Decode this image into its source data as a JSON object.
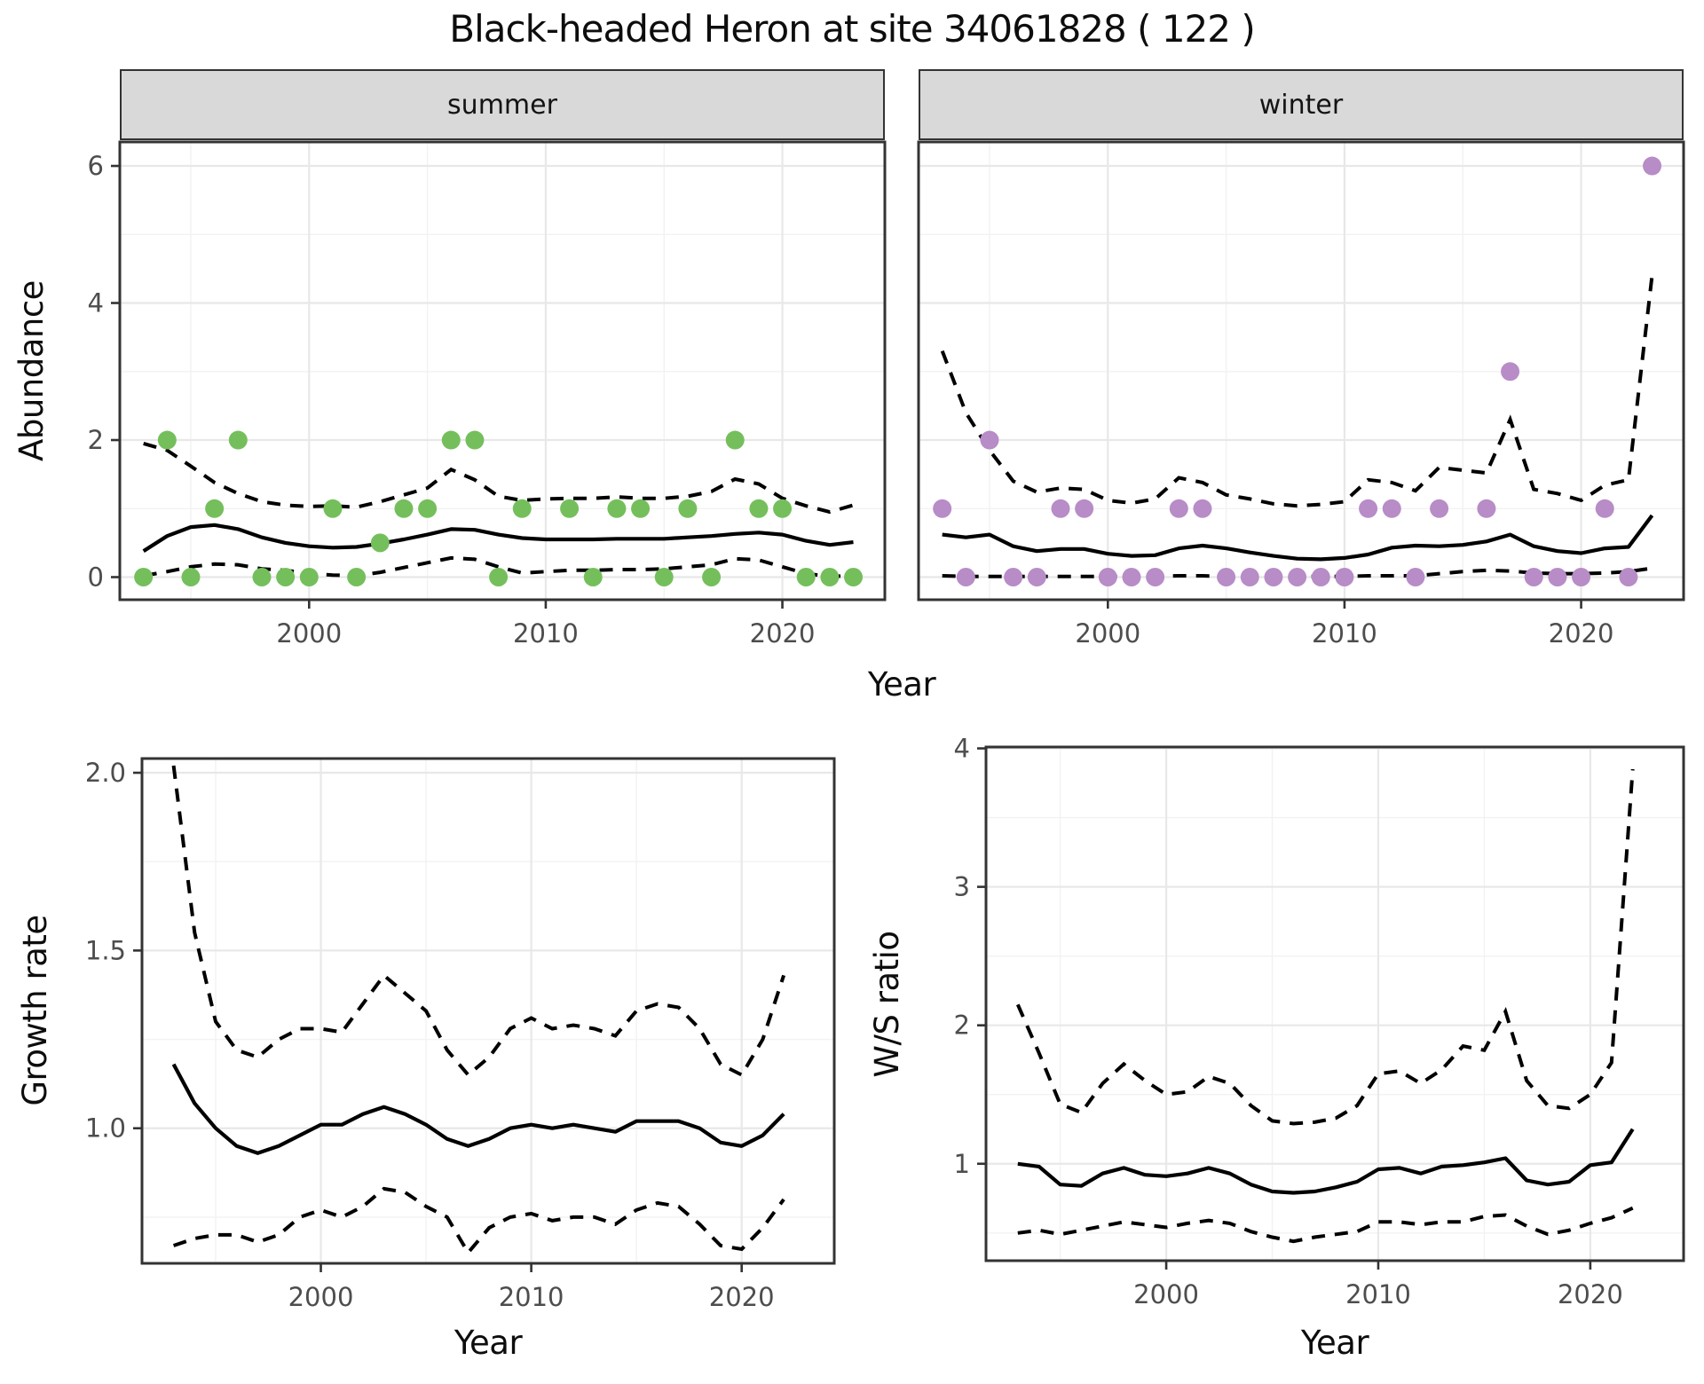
{
  "title": "Black-headed Heron at site 34061828 ( 122 )",
  "labels": {
    "year": "Year",
    "abundance": "Abundance",
    "growth_rate": "Growth rate",
    "ws_ratio": "W/S ratio"
  },
  "facets": [
    {
      "label": "summer"
    },
    {
      "label": "winter"
    }
  ],
  "colors": {
    "summer_point": "#74bf5c",
    "winter_point": "#b78cc7",
    "strip_bg": "#d9d9d9",
    "grid_major": "#e8e8e8",
    "grid_minor": "#f2f2f2",
    "panel_border": "#333333",
    "tick_text": "#4d4d4d",
    "line": "#000000"
  },
  "chart_data": [
    {
      "name": "abundance-summer",
      "type": "scatter",
      "facet": "summer",
      "xlabel": "Year",
      "ylabel": "Abundance",
      "xlim": [
        1992.0,
        2024.33
      ],
      "ylim": [
        -0.33,
        6.35
      ],
      "xticks": [
        2000,
        2010,
        2020
      ],
      "xtick_labels": [
        "2000",
        "2010",
        "2020"
      ],
      "yticks": [
        0,
        2,
        4,
        6
      ],
      "ytick_labels": [
        "0",
        "2",
        "4",
        "6"
      ],
      "x_minor": [
        1995,
        2005,
        2015
      ],
      "y_minor": [
        1,
        3,
        5
      ],
      "show_y_labels": true,
      "point_color": "#74bf5c",
      "years": [
        1993,
        1994,
        1995,
        1996,
        1997,
        1998,
        1999,
        2000,
        2001,
        2002,
        2003,
        2004,
        2005,
        2006,
        2007,
        2008,
        2009,
        2010,
        2011,
        2012,
        2013,
        2014,
        2015,
        2016,
        2017,
        2018,
        2019,
        2020,
        2021,
        2022,
        2023
      ],
      "fit": [
        0.38,
        0.6,
        0.73,
        0.76,
        0.7,
        0.58,
        0.5,
        0.45,
        0.43,
        0.44,
        0.49,
        0.55,
        0.62,
        0.7,
        0.69,
        0.62,
        0.57,
        0.55,
        0.55,
        0.55,
        0.56,
        0.56,
        0.56,
        0.58,
        0.6,
        0.63,
        0.65,
        0.62,
        0.53,
        0.47,
        0.51
      ],
      "upper": [
        1.95,
        1.85,
        1.62,
        1.38,
        1.22,
        1.1,
        1.05,
        1.03,
        1.04,
        1.02,
        1.1,
        1.2,
        1.3,
        1.57,
        1.42,
        1.18,
        1.12,
        1.14,
        1.15,
        1.15,
        1.17,
        1.15,
        1.15,
        1.18,
        1.25,
        1.43,
        1.36,
        1.15,
        1.04,
        0.95,
        1.05
      ],
      "lower": [
        0.02,
        0.08,
        0.15,
        0.19,
        0.18,
        0.12,
        0.1,
        0.05,
        0.03,
        0.02,
        0.07,
        0.14,
        0.21,
        0.28,
        0.26,
        0.15,
        0.06,
        0.08,
        0.1,
        0.1,
        0.11,
        0.11,
        0.12,
        0.15,
        0.18,
        0.27,
        0.25,
        0.15,
        0.05,
        0.01,
        0.02
      ],
      "points": [
        [
          1993,
          0
        ],
        [
          1994,
          2
        ],
        [
          1995,
          0
        ],
        [
          1996,
          1
        ],
        [
          1997,
          2
        ],
        [
          1998,
          0
        ],
        [
          1999,
          0
        ],
        [
          2000,
          0
        ],
        [
          2001,
          1
        ],
        [
          2002,
          0
        ],
        [
          2003,
          0.5
        ],
        [
          2004,
          1
        ],
        [
          2005,
          1
        ],
        [
          2006,
          2
        ],
        [
          2007,
          2
        ],
        [
          2008,
          0
        ],
        [
          2009,
          1
        ],
        [
          2011,
          1
        ],
        [
          2012,
          0
        ],
        [
          2013,
          1
        ],
        [
          2014,
          1
        ],
        [
          2015,
          0
        ],
        [
          2016,
          1
        ],
        [
          2017,
          0
        ],
        [
          2018,
          2
        ],
        [
          2019,
          1
        ],
        [
          2020,
          1
        ],
        [
          2021,
          0
        ],
        [
          2022,
          0
        ],
        [
          2023,
          0
        ]
      ]
    },
    {
      "name": "abundance-winter",
      "type": "scatter",
      "facet": "winter",
      "xlabel": "Year",
      "ylabel": "Abundance",
      "xlim": [
        1992.0,
        2024.33
      ],
      "ylim": [
        -0.33,
        6.35
      ],
      "xticks": [
        2000,
        2010,
        2020
      ],
      "xtick_labels": [
        "2000",
        "2010",
        "2020"
      ],
      "yticks": [
        0,
        2,
        4,
        6
      ],
      "ytick_labels": [
        "0",
        "2",
        "4",
        "6"
      ],
      "x_minor": [
        1995,
        2005,
        2015
      ],
      "y_minor": [
        1,
        3,
        5
      ],
      "show_y_labels": false,
      "point_color": "#b78cc7",
      "years": [
        1993,
        1994,
        1995,
        1996,
        1997,
        1998,
        1999,
        2000,
        2001,
        2002,
        2003,
        2004,
        2005,
        2006,
        2007,
        2008,
        2009,
        2010,
        2011,
        2012,
        2013,
        2014,
        2015,
        2016,
        2017,
        2018,
        2019,
        2020,
        2021,
        2022,
        2023
      ],
      "fit": [
        0.62,
        0.58,
        0.62,
        0.45,
        0.38,
        0.41,
        0.41,
        0.34,
        0.31,
        0.32,
        0.42,
        0.46,
        0.42,
        0.36,
        0.31,
        0.27,
        0.26,
        0.28,
        0.33,
        0.43,
        0.46,
        0.45,
        0.47,
        0.52,
        0.62,
        0.45,
        0.38,
        0.35,
        0.42,
        0.44,
        0.9
      ],
      "upper": [
        3.3,
        2.4,
        1.85,
        1.4,
        1.24,
        1.3,
        1.28,
        1.12,
        1.08,
        1.14,
        1.45,
        1.38,
        1.2,
        1.14,
        1.07,
        1.04,
        1.06,
        1.1,
        1.42,
        1.38,
        1.26,
        1.6,
        1.56,
        1.52,
        2.3,
        1.28,
        1.22,
        1.12,
        1.34,
        1.42,
        4.4
      ],
      "lower": [
        0.02,
        0.01,
        0.01,
        0.01,
        0.01,
        0.01,
        0.01,
        0.01,
        0.01,
        0.01,
        0.02,
        0.02,
        0.01,
        0.01,
        0.01,
        0.01,
        0.01,
        0.01,
        0.02,
        0.02,
        0.02,
        0.05,
        0.08,
        0.1,
        0.09,
        0.06,
        0.05,
        0.05,
        0.06,
        0.08,
        0.13
      ],
      "points": [
        [
          1993,
          1
        ],
        [
          1994,
          0
        ],
        [
          1995,
          2
        ],
        [
          1996,
          0
        ],
        [
          1997,
          0
        ],
        [
          1998,
          1
        ],
        [
          1999,
          1
        ],
        [
          2000,
          0
        ],
        [
          2001,
          0
        ],
        [
          2002,
          0
        ],
        [
          2003,
          1
        ],
        [
          2004,
          1
        ],
        [
          2005,
          0
        ],
        [
          2006,
          0
        ],
        [
          2007,
          0
        ],
        [
          2008,
          0
        ],
        [
          2009,
          0
        ],
        [
          2010,
          0
        ],
        [
          2011,
          1
        ],
        [
          2012,
          1
        ],
        [
          2013,
          0
        ],
        [
          2014,
          1
        ],
        [
          2016,
          1
        ],
        [
          2017,
          3
        ],
        [
          2018,
          0
        ],
        [
          2019,
          0
        ],
        [
          2020,
          0
        ],
        [
          2021,
          1
        ],
        [
          2022,
          0
        ],
        [
          2023,
          6
        ]
      ]
    },
    {
      "name": "growth-rate",
      "type": "line",
      "xlabel": "Year",
      "ylabel": "Growth rate",
      "xlim": [
        1991.5,
        2024.4
      ],
      "ylim": [
        0.62,
        2.04
      ],
      "xticks": [
        2000,
        2010,
        2020
      ],
      "xtick_labels": [
        "2000",
        "2010",
        "2020"
      ],
      "yticks": [
        1.0,
        1.5,
        2.0
      ],
      "ytick_labels": [
        "1.0",
        "1.5",
        "2.0"
      ],
      "x_minor": [
        1995,
        2005,
        2015
      ],
      "y_minor": [
        0.75,
        1.25,
        1.75
      ],
      "show_y_labels": true,
      "point_color": "#000000",
      "years": [
        1993,
        1994,
        1995,
        1996,
        1997,
        1998,
        1999,
        2000,
        2001,
        2002,
        2003,
        2004,
        2005,
        2006,
        2007,
        2008,
        2009,
        2010,
        2011,
        2012,
        2013,
        2014,
        2015,
        2016,
        2017,
        2018,
        2019,
        2020,
        2021,
        2022
      ],
      "fit": [
        1.18,
        1.07,
        1.0,
        0.95,
        0.93,
        0.95,
        0.98,
        1.01,
        1.01,
        1.04,
        1.06,
        1.04,
        1.01,
        0.97,
        0.95,
        0.97,
        1.0,
        1.01,
        1.0,
        1.01,
        1.0,
        0.99,
        1.02,
        1.02,
        1.02,
        1.0,
        0.96,
        0.95,
        0.98,
        1.04
      ],
      "upper": [
        2.02,
        1.55,
        1.3,
        1.22,
        1.2,
        1.25,
        1.28,
        1.28,
        1.27,
        1.35,
        1.43,
        1.38,
        1.33,
        1.22,
        1.15,
        1.2,
        1.28,
        1.31,
        1.28,
        1.29,
        1.28,
        1.26,
        1.33,
        1.35,
        1.34,
        1.28,
        1.18,
        1.15,
        1.25,
        1.43
      ],
      "lower": [
        0.67,
        0.69,
        0.7,
        0.7,
        0.68,
        0.7,
        0.75,
        0.77,
        0.75,
        0.78,
        0.83,
        0.82,
        0.78,
        0.75,
        0.65,
        0.72,
        0.75,
        0.76,
        0.74,
        0.75,
        0.75,
        0.73,
        0.77,
        0.79,
        0.78,
        0.73,
        0.67,
        0.66,
        0.72,
        0.8
      ],
      "points": []
    },
    {
      "name": "ws-ratio",
      "type": "line",
      "xlabel": "Year",
      "ylabel": "W/S ratio",
      "xlim": [
        1991.5,
        2024.4
      ],
      "ylim": [
        0.3,
        4.01
      ],
      "xticks": [
        2000,
        2010,
        2020
      ],
      "xtick_labels": [
        "2000",
        "2010",
        "2020"
      ],
      "yticks": [
        1,
        2,
        3,
        4
      ],
      "ytick_labels": [
        "1",
        "2",
        "3",
        "4"
      ],
      "x_minor": [
        1995,
        2005,
        2015
      ],
      "y_minor": [
        0.5,
        1.5,
        2.5,
        3.5
      ],
      "show_y_labels": true,
      "point_color": "#000000",
      "years": [
        1993,
        1994,
        1995,
        1996,
        1997,
        1998,
        1999,
        2000,
        2001,
        2002,
        2003,
        2004,
        2005,
        2006,
        2007,
        2008,
        2009,
        2010,
        2011,
        2012,
        2013,
        2014,
        2015,
        2016,
        2017,
        2018,
        2019,
        2020,
        2021,
        2022
      ],
      "fit": [
        1.0,
        0.98,
        0.85,
        0.84,
        0.93,
        0.97,
        0.92,
        0.91,
        0.93,
        0.97,
        0.93,
        0.85,
        0.8,
        0.79,
        0.8,
        0.83,
        0.87,
        0.96,
        0.97,
        0.93,
        0.98,
        0.99,
        1.01,
        1.04,
        0.88,
        0.85,
        0.87,
        0.99,
        1.01,
        1.25
      ],
      "upper": [
        2.15,
        1.8,
        1.43,
        1.37,
        1.58,
        1.72,
        1.6,
        1.5,
        1.52,
        1.63,
        1.58,
        1.42,
        1.31,
        1.29,
        1.3,
        1.33,
        1.42,
        1.65,
        1.67,
        1.58,
        1.68,
        1.85,
        1.82,
        2.1,
        1.6,
        1.42,
        1.4,
        1.5,
        1.73,
        3.85
      ],
      "lower": [
        0.5,
        0.52,
        0.49,
        0.52,
        0.55,
        0.58,
        0.56,
        0.54,
        0.57,
        0.59,
        0.57,
        0.51,
        0.47,
        0.44,
        0.47,
        0.49,
        0.51,
        0.58,
        0.58,
        0.56,
        0.58,
        0.58,
        0.62,
        0.63,
        0.55,
        0.49,
        0.52,
        0.57,
        0.61,
        0.68
      ],
      "points": []
    }
  ]
}
